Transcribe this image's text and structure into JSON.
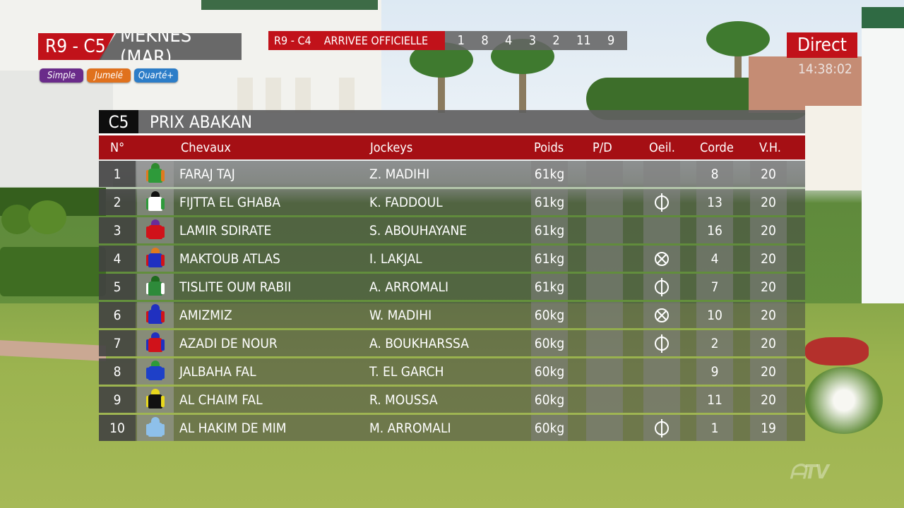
{
  "race": {
    "id": "R9 - C5",
    "venue": "MEKNES (MAR)"
  },
  "bets": [
    "Simple",
    "Jumelé",
    "Quarté+"
  ],
  "arrival": {
    "race": "R9 - C4",
    "label": "ARRIVEE OFFICIELLE",
    "numbers": [
      "1",
      "8",
      "4",
      "3",
      "2",
      "11",
      "9"
    ]
  },
  "live": {
    "label": "Direct",
    "time": "14:38:02"
  },
  "board": {
    "badge": "C5",
    "title": "PRIX ABAKAN",
    "headers": {
      "num": "N°",
      "horse": "Chevaux",
      "jockey": "Jockeys",
      "weight": "Poids",
      "pd": "P/D",
      "oeil": "Oeil.",
      "corde": "Corde",
      "vh": "V.H."
    },
    "rows": [
      {
        "num": "1",
        "horse": "FARAJ TAJ",
        "jockey": "Z. MADIHI",
        "weight": "61kg",
        "pd": "",
        "oeil": "",
        "corde": "8",
        "vh": "20",
        "silk": {
          "cap": "#2e8a2e",
          "body": "#2e9a3a",
          "arm": "#e07a1e"
        }
      },
      {
        "num": "2",
        "horse": "FIJTTA EL GHABA",
        "jockey": "K. FADDOUL",
        "weight": "61kg",
        "pd": "",
        "oeil": "phi",
        "corde": "13",
        "vh": "20",
        "silk": {
          "cap": "#111111",
          "body": "#ffffff",
          "arm": "#2e9a3a"
        }
      },
      {
        "num": "3",
        "horse": "LAMIR SDIRATE",
        "jockey": "S. ABOUHAYANE",
        "weight": "61kg",
        "pd": "",
        "oeil": "",
        "corde": "16",
        "vh": "20",
        "silk": {
          "cap": "#6a2b9a",
          "body": "#d0121a",
          "arm": "#d0121a"
        }
      },
      {
        "num": "4",
        "horse": "MAKTOUB ATLAS",
        "jockey": "I. LAKJAL",
        "weight": "61kg",
        "pd": "",
        "oeil": "cross",
        "corde": "4",
        "vh": "20",
        "silk": {
          "cap": "#e07a1e",
          "body": "#2030c0",
          "arm": "#d0121a"
        }
      },
      {
        "num": "5",
        "horse": "TISLITE OUM RABII",
        "jockey": "A. ARROMALI",
        "weight": "61kg",
        "pd": "",
        "oeil": "phi",
        "corde": "7",
        "vh": "20",
        "silk": {
          "cap": "#1e6a1e",
          "body": "#2e8a3a",
          "arm": "#ffffff"
        }
      },
      {
        "num": "6",
        "horse": "AMIZMIZ",
        "jockey": "W. MADIHI",
        "weight": "60kg",
        "pd": "",
        "oeil": "cross",
        "corde": "10",
        "vh": "20",
        "silk": {
          "cap": "#2030c0",
          "body": "#2030c0",
          "arm": "#d0121a"
        }
      },
      {
        "num": "7",
        "horse": "AZADI DE NOUR",
        "jockey": "A. BOUKHARSSA",
        "weight": "60kg",
        "pd": "",
        "oeil": "phi",
        "corde": "2",
        "vh": "20",
        "silk": {
          "cap": "#2030c0",
          "body": "#d0121a",
          "arm": "#2030c0"
        }
      },
      {
        "num": "8",
        "horse": "JALBAHA FAL",
        "jockey": "T. EL GARCH",
        "weight": "60kg",
        "pd": "",
        "oeil": "",
        "corde": "9",
        "vh": "20",
        "silk": {
          "cap": "#2e9a3a",
          "body": "#1e40c8",
          "arm": "#1e40c8"
        }
      },
      {
        "num": "9",
        "horse": "AL CHAIM FAL",
        "jockey": "R. MOUSSA",
        "weight": "60kg",
        "pd": "",
        "oeil": "",
        "corde": "11",
        "vh": "20",
        "silk": {
          "cap": "#e8d81e",
          "body": "#111111",
          "arm": "#e8d81e"
        }
      },
      {
        "num": "10",
        "horse": "AL HAKIM DE MIM",
        "jockey": "M. ARROMALI",
        "weight": "60kg",
        "pd": "",
        "oeil": "phi",
        "corde": "1",
        "vh": "19",
        "silk": {
          "cap": "#8ec0ea",
          "body": "#8ec0ea",
          "arm": "#8ec0ea"
        }
      }
    ]
  },
  "colors": {
    "red": "#c1121a",
    "header_red": "#a50f14",
    "dark": "#0e0e0e"
  }
}
